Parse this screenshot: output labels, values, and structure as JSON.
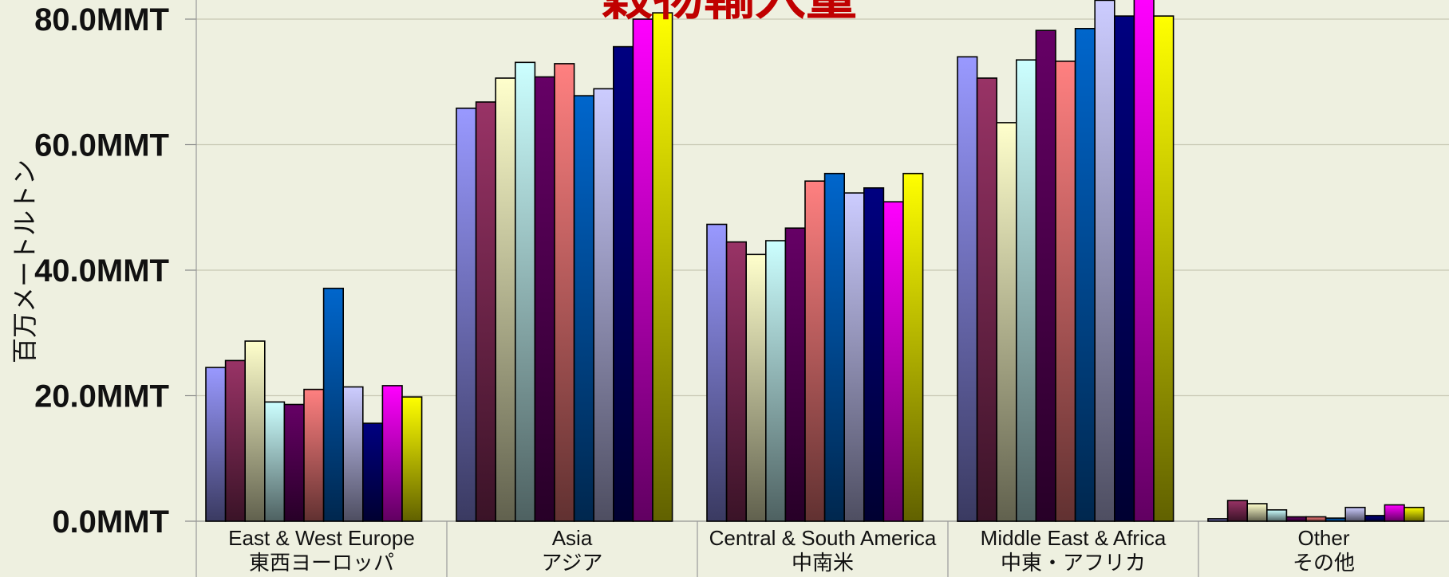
{
  "chart_data": {
    "type": "bar",
    "title": "穀物輸入量",
    "ylabel": "百万メートルトン",
    "ylim": [
      0,
      80
    ],
    "yticks": [
      "0.0MMT",
      "20.0MMT",
      "40.0MMT",
      "60.0MMT",
      "80.0MMT"
    ],
    "grid": true,
    "categories": [
      {
        "en": "East & West Europe",
        "ja": "東西ヨーロッパ"
      },
      {
        "en": "Asia",
        "ja": "アジア"
      },
      {
        "en": "Central & South America",
        "ja": "中南米"
      },
      {
        "en": "Middle East & Africa",
        "ja": "中東・アフリカ"
      },
      {
        "en": "Other",
        "ja": "その他"
      }
    ],
    "series": [
      {
        "color": "#9999ff",
        "values": [
          24.5,
          65.8,
          47.3,
          74.0,
          0.4
        ]
      },
      {
        "color": "#993366",
        "values": [
          25.6,
          66.8,
          44.5,
          70.6,
          3.3
        ]
      },
      {
        "color": "#ffffcc",
        "values": [
          28.7,
          70.6,
          42.5,
          63.5,
          2.8
        ]
      },
      {
        "color": "#ccffff",
        "values": [
          19.0,
          73.1,
          44.7,
          73.5,
          1.8
        ]
      },
      {
        "color": "#660066",
        "values": [
          18.6,
          70.8,
          46.7,
          78.2,
          0.7
        ]
      },
      {
        "color": "#ff8080",
        "values": [
          21.0,
          72.9,
          54.2,
          73.3,
          0.7
        ]
      },
      {
        "color": "#0066cc",
        "values": [
          37.1,
          67.8,
          55.4,
          78.5,
          0.5
        ]
      },
      {
        "color": "#ccccff",
        "values": [
          21.4,
          68.9,
          52.3,
          83.0,
          2.2
        ]
      },
      {
        "color": "#000080",
        "values": [
          15.6,
          75.6,
          53.1,
          80.5,
          0.9
        ]
      },
      {
        "color": "#ff00ff",
        "values": [
          21.6,
          80.0,
          50.9,
          84.0,
          2.6
        ]
      },
      {
        "color": "#ffff00",
        "values": [
          19.8,
          81.0,
          55.4,
          80.5,
          2.2
        ]
      }
    ]
  }
}
